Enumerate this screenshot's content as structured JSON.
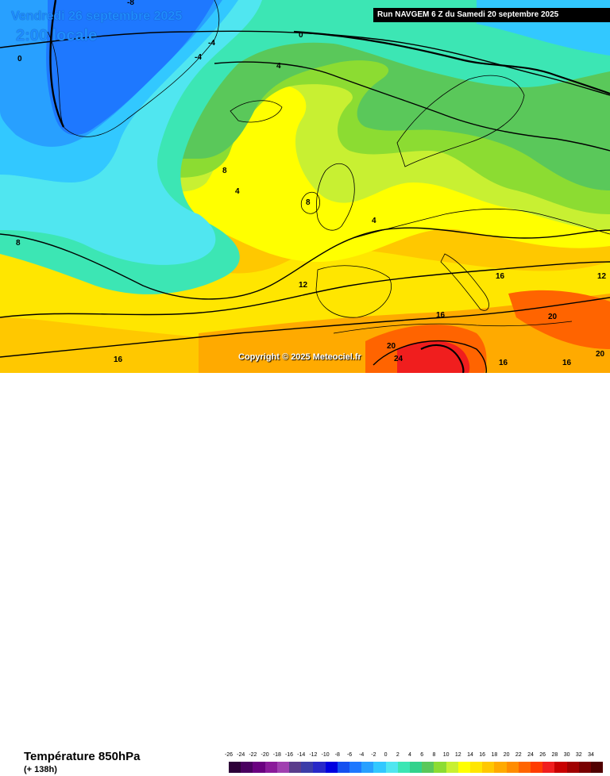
{
  "header": {
    "run_label": "Run NAVGEM 6 Z du Samedi 20 septembre 2025",
    "valid_date": "Vendredi 26 septembre 2025",
    "local_time": "2:00 locale"
  },
  "copyright": "Copyright © 2025 Meteociel.fr",
  "footer": {
    "variable": "Température 850hPa",
    "lead_time": "(+ 138h)"
  },
  "legend": {
    "ticks": [
      "-26",
      "-24",
      "-22",
      "-20",
      "-18",
      "-16",
      "-14",
      "-12",
      "-10",
      "-8",
      "-6",
      "-4",
      "-2",
      "0",
      "2",
      "4",
      "6",
      "8",
      "10",
      "12",
      "14",
      "16",
      "18",
      "20",
      "22",
      "24",
      "26",
      "28",
      "30",
      "32",
      "34"
    ],
    "colors": [
      "#2d0038",
      "#4a0060",
      "#6a0080",
      "#8a1a9a",
      "#a040b0",
      "#5a3c8c",
      "#3c3ca8",
      "#2828c8",
      "#0000e0",
      "#1450f0",
      "#1e78ff",
      "#28a0ff",
      "#32c8ff",
      "#50e6f0",
      "#3ce6b4",
      "#32d28c",
      "#5ac85a",
      "#8cdc32",
      "#c8f032",
      "#ffff00",
      "#ffe600",
      "#ffc800",
      "#ffaa00",
      "#ff8c00",
      "#ff6400",
      "#ff3c00",
      "#f01e1e",
      "#c80000",
      "#a00000",
      "#780000",
      "#500000"
    ]
  },
  "contour_labels": [
    "-8",
    "-4",
    "-4",
    "0",
    "0",
    "4",
    "8",
    "4",
    "8",
    "8",
    "4",
    "12",
    "16",
    "16",
    "12",
    "20",
    "20",
    "24",
    "16",
    "16",
    "20",
    "16"
  ],
  "map_colors": {
    "deep_cold": "#1e78ff",
    "cold": "#28a0ff",
    "cool": "#32c8ff",
    "cyan": "#50e6f0",
    "teal": "#3ce6b4",
    "green": "#5ac85a",
    "lime": "#8cdc32",
    "yellow_green": "#c8f032",
    "yellow": "#ffff00",
    "light_orange": "#ffe600",
    "orange": "#ffc800",
    "dark_orange": "#ffaa00",
    "red": "#ff6400",
    "deep_red": "#f01e1e"
  }
}
